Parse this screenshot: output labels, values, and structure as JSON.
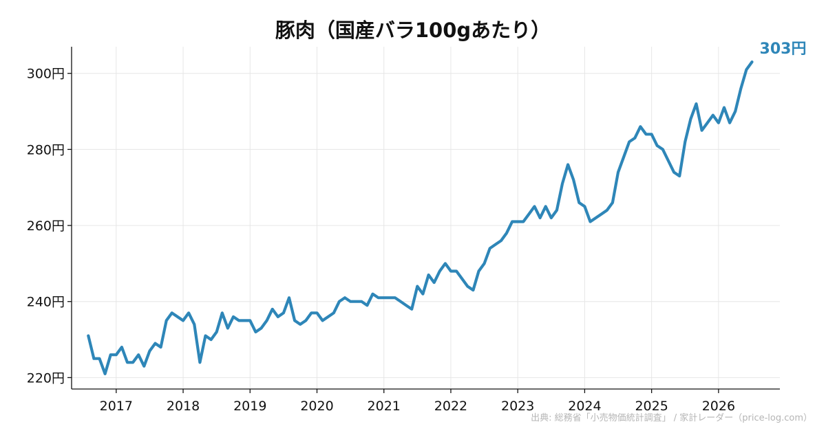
{
  "chart_data": {
    "type": "line",
    "title": "豚肉（国産バラ100gあたり）",
    "xlabel": "",
    "ylabel": "",
    "unit": "円",
    "y_ticks": [
      "220円",
      "240円",
      "260円",
      "280円",
      "300円"
    ],
    "ylim": [
      217,
      307
    ],
    "x_ticks": [
      "2017",
      "2018",
      "2019",
      "2020",
      "2021",
      "2022",
      "2023",
      "2024",
      "2025",
      "2026"
    ],
    "xlim": [
      "2016-05",
      "2026-12"
    ],
    "grid": true,
    "line_color": "#2e86b8",
    "end_label": "303円",
    "source": "出典: 総務省「小売物価統計調査」 / 家計レーダー（price-log.com）",
    "series": [
      {
        "dates": [
          "2016-08",
          "2016-09",
          "2016-10",
          "2016-11",
          "2016-12",
          "2017-01",
          "2017-02",
          "2017-03",
          "2017-04",
          "2017-05",
          "2017-06",
          "2017-07",
          "2017-08",
          "2017-09",
          "2017-10",
          "2017-11",
          "2017-12",
          "2018-01",
          "2018-02",
          "2018-03",
          "2018-04",
          "2018-05",
          "2018-06",
          "2018-07",
          "2018-08",
          "2018-09",
          "2018-10",
          "2018-11",
          "2018-12",
          "2019-01",
          "2019-02",
          "2019-03",
          "2019-04",
          "2019-05",
          "2019-06",
          "2019-07",
          "2019-08",
          "2019-09",
          "2019-10",
          "2019-11",
          "2019-12",
          "2020-01",
          "2020-02",
          "2020-03",
          "2020-04",
          "2020-05",
          "2020-06",
          "2020-07",
          "2020-08",
          "2020-09",
          "2020-10",
          "2020-11",
          "2020-12",
          "2021-01",
          "2021-02",
          "2021-03",
          "2021-04",
          "2021-05",
          "2021-06",
          "2021-07",
          "2021-08",
          "2021-09",
          "2021-10",
          "2021-11",
          "2021-12",
          "2022-01",
          "2022-02",
          "2022-03",
          "2022-04",
          "2022-05",
          "2022-06",
          "2022-07",
          "2022-08",
          "2022-09",
          "2022-10",
          "2022-11",
          "2022-12",
          "2023-01",
          "2023-02",
          "2023-03",
          "2023-04",
          "2023-05",
          "2023-06",
          "2023-07",
          "2023-08",
          "2023-09",
          "2023-10",
          "2023-11",
          "2023-12",
          "2024-01",
          "2024-02",
          "2024-03",
          "2024-04",
          "2024-05",
          "2024-06",
          "2024-07",
          "2024-08",
          "2024-09",
          "2024-10",
          "2024-11",
          "2024-12",
          "2025-01",
          "2025-02",
          "2025-03",
          "2025-04",
          "2025-05",
          "2025-06",
          "2025-07",
          "2025-08",
          "2025-09",
          "2025-10",
          "2025-11",
          "2025-12",
          "2026-01",
          "2026-02",
          "2026-03",
          "2026-04",
          "2026-05",
          "2026-06",
          "2026-07"
        ],
        "values": [
          231,
          225,
          225,
          221,
          226,
          226,
          228,
          224,
          224,
          226,
          223,
          227,
          229,
          228,
          235,
          237,
          236,
          235,
          237,
          234,
          224,
          231,
          230,
          232,
          237,
          233,
          236,
          235,
          235,
          235,
          232,
          233,
          235,
          238,
          236,
          237,
          241,
          235,
          234,
          235,
          237,
          237,
          235,
          236,
          237,
          240,
          241,
          240,
          240,
          240,
          239,
          242,
          241,
          241,
          241,
          241,
          240,
          239,
          238,
          244,
          242,
          247,
          245,
          248,
          250,
          248,
          248,
          246,
          244,
          243,
          248,
          250,
          254,
          255,
          256,
          258,
          261,
          261,
          261,
          263,
          265,
          262,
          265,
          262,
          264,
          271,
          276,
          272,
          266,
          265,
          261,
          262,
          263,
          264,
          266,
          274,
          278,
          282,
          283,
          286,
          284,
          284,
          281,
          280,
          277,
          274,
          273,
          282,
          288,
          292,
          285,
          287,
          289,
          287,
          291,
          287,
          290,
          296,
          301,
          303
        ]
      }
    ]
  }
}
